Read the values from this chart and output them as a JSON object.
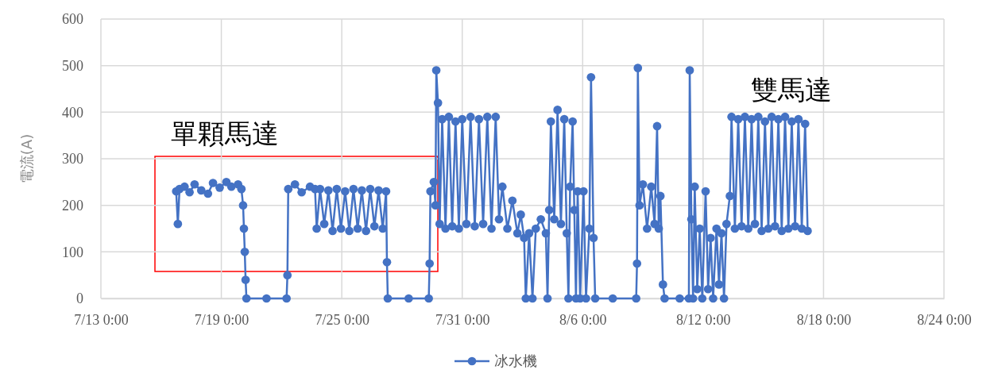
{
  "chart_data": {
    "type": "line",
    "ylabel": "電流(A)",
    "xlim": [
      "--07-13T00:00",
      "--08-24T00:00"
    ],
    "xticks": [
      {
        "value": "--07-13T00:00",
        "label": "7/13 0:00"
      },
      {
        "value": "--07-19T00:00",
        "label": "7/19 0:00"
      },
      {
        "value": "--07-25T00:00",
        "label": "7/25 0:00"
      },
      {
        "value": "--07-31T00:00",
        "label": "7/31 0:00"
      },
      {
        "value": "--08-06T00:00",
        "label": "8/6 0:00"
      },
      {
        "value": "--08-12T00:00",
        "label": "8/12 0:00"
      },
      {
        "value": "--08-18T00:00",
        "label": "8/18 0:00"
      },
      {
        "value": "--08-24T00:00",
        "label": "8/24 0:00"
      }
    ],
    "ylim": [
      0,
      600
    ],
    "yticks": [
      0,
      100,
      200,
      300,
      400,
      500,
      600
    ],
    "grid": true,
    "legend": "bottom",
    "marker": "circle",
    "line_style": "solid",
    "annotations": [
      "單顆馬達",
      "雙馬達"
    ],
    "x": [
      "--07-16T18:00",
      "--07-16T20:00",
      "--07-16T22:00",
      "--07-17T04:00",
      "--07-17T10:00",
      "--07-17T16:00",
      "--07-18T00:00",
      "--07-18T08:00",
      "--07-18T14:00",
      "--07-18T22:00",
      "--07-19T06:00",
      "--07-19T12:00",
      "--07-19T20:00",
      "--07-20T00:00",
      "--07-20T02:00",
      "--07-20T03:00",
      "--07-20T04:00",
      "--07-20T05:00",
      "--07-20T06:00",
      "--07-21T06:00",
      "--07-22T06:00",
      "--07-22T07:00",
      "--07-22T08:00",
      "--07-22T16:00",
      "--07-23T00:00",
      "--07-23T10:00",
      "--07-23T16:00",
      "--07-23T18:00",
      "--07-23T22:00",
      "--07-24T03:00",
      "--07-24T08:00",
      "--07-24T13:00",
      "--07-24T18:00",
      "--07-24T23:00",
      "--07-25T04:00",
      "--07-25T09:00",
      "--07-25T14:00",
      "--07-25T19:00",
      "--07-26T00:00",
      "--07-26T05:00",
      "--07-26T10:00",
      "--07-26T15:00",
      "--07-26T20:00",
      "--07-27T01:00",
      "--07-27T05:00",
      "--07-27T06:00",
      "--07-27T07:00",
      "--07-28T08:00",
      "--07-29T08:00",
      "--07-29T09:00",
      "--07-29T10:00",
      "--07-29T14:00",
      "--07-29T16:00",
      "--07-29T17:00",
      "--07-29T19:00",
      "--07-29T21:00",
      "--07-30T00:00",
      "--07-30T04:00",
      "--07-30T08:00",
      "--07-30T12:00",
      "--07-30T16:00",
      "--07-30T20:00",
      "--07-31T00:00",
      "--07-31T05:00",
      "--07-31T10:00",
      "--07-31T15:00",
      "--07-31T20:00",
      "--08-01T01:00",
      "--08-01T06:00",
      "--08-01T11:00",
      "--08-01T16:00",
      "--08-01T20:00",
      "--08-02T00:00",
      "--08-02T06:00",
      "--08-02T12:00",
      "--08-02T18:00",
      "--08-02T22:00",
      "--08-03T02:00",
      "--08-03T04:00",
      "--08-03T08:00",
      "--08-03T12:00",
      "--08-03T16:00",
      "--08-03T22:00",
      "--08-04T04:00",
      "--08-04T06:00",
      "--08-04T08:00",
      "--08-04T10:00",
      "--08-04T14:00",
      "--08-04T18:00",
      "--08-04T22:00",
      "--08-05T02:00",
      "--08-05T05:00",
      "--08-05T07:00",
      "--08-05T09:00",
      "--08-05T12:00",
      "--08-05T14:00",
      "--08-05T16:00",
      "--08-05T18:00",
      "--08-05T21:00",
      "--08-06T01:00",
      "--08-06T04:00",
      "--08-06T08:00",
      "--08-06T10:00",
      "--08-06T13:00",
      "--08-06T15:00",
      "--08-07T12:00",
      "--08-08T16:00",
      "--08-08T17:00",
      "--08-08T18:00",
      "--08-08T20:00",
      "--08-09T00:00",
      "--08-09T05:00",
      "--08-09T10:00",
      "--08-09T14:00",
      "--08-09T17:00",
      "--08-09T19:00",
      "--08-09T21:00",
      "--08-10T00:00",
      "--08-10T02:00",
      "--08-10T20:00",
      "--08-11T07:00",
      "--08-11T08:00",
      "--08-11T10:00",
      "--08-11T12:00",
      "--08-11T14:00",
      "--08-11T17:00",
      "--08-11T20:00",
      "--08-11T23:00",
      "--08-12T03:00",
      "--08-12T06:00",
      "--08-12T09:00",
      "--08-12T12:00",
      "--08-12T16:00",
      "--08-12T19:00",
      "--08-12T22:00",
      "--08-13T01:00",
      "--08-13T04:00",
      "--08-13T08:00",
      "--08-13T10:00",
      "--08-13T14:00",
      "--08-13T18:00",
      "--08-13T22:00",
      "--08-14T02:00",
      "--08-14T06:00",
      "--08-14T10:00",
      "--08-14T14:00",
      "--08-14T18:00",
      "--08-14T22:00",
      "--08-15T02:00",
      "--08-15T06:00",
      "--08-15T10:00",
      "--08-15T14:00",
      "--08-15T18:00",
      "--08-15T22:00",
      "--08-16T02:00",
      "--08-16T06:00",
      "--08-16T10:00",
      "--08-16T14:00",
      "--08-16T18:00",
      "--08-16T22:00",
      "--08-17T02:00",
      "--08-17T05:00"
    ],
    "series": [
      {
        "name": "冰水機",
        "color": "#4472c4",
        "values": [
          230,
          160,
          235,
          240,
          228,
          245,
          232,
          225,
          248,
          238,
          250,
          240,
          245,
          235,
          200,
          150,
          100,
          40,
          0,
          0,
          0,
          50,
          235,
          245,
          228,
          240,
          235,
          150,
          235,
          160,
          232,
          145,
          235,
          150,
          230,
          145,
          235,
          150,
          232,
          145,
          235,
          155,
          232,
          150,
          230,
          78,
          0,
          0,
          0,
          75,
          230,
          250,
          200,
          490,
          420,
          160,
          385,
          150,
          390,
          155,
          380,
          150,
          385,
          160,
          390,
          155,
          385,
          160,
          390,
          150,
          390,
          170,
          240,
          150,
          210,
          140,
          180,
          130,
          0,
          140,
          0,
          150,
          170,
          140,
          0,
          190,
          380,
          170,
          405,
          160,
          385,
          140,
          0,
          240,
          380,
          190,
          0,
          230,
          0,
          230,
          0,
          150,
          475,
          130,
          0,
          0,
          0,
          75,
          495,
          200,
          245,
          150,
          240,
          160,
          370,
          150,
          220,
          30,
          0,
          0,
          0,
          490,
          170,
          0,
          240,
          20,
          150,
          0,
          230,
          20,
          130,
          0,
          150,
          30,
          140,
          0,
          160,
          220,
          390,
          150,
          385,
          155,
          390,
          150,
          385,
          160,
          390,
          145,
          380,
          150,
          390,
          155,
          385,
          145,
          390,
          150,
          380,
          155,
          385,
          150,
          375,
          145
        ]
      }
    ]
  }
}
